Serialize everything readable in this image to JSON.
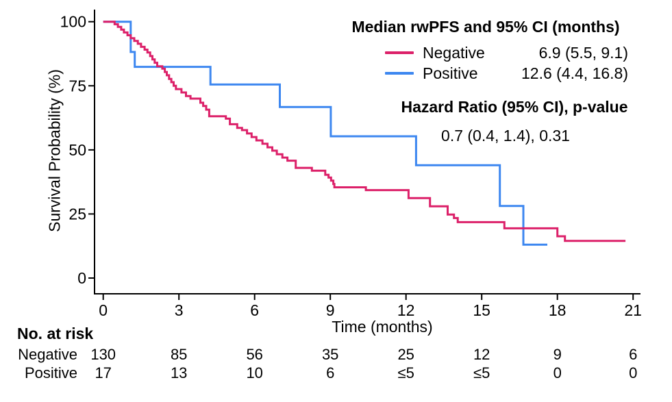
{
  "colors": {
    "axis": "#000000",
    "text": "#000000",
    "negative": "#dc2069",
    "positive": "#3d87f0"
  },
  "chart_data": {
    "type": "line",
    "subtype": "kaplan-meier-step",
    "xlabel": "Time (months)",
    "ylabel": "Survival Probability (%)",
    "xlim": [
      0,
      21
    ],
    "ylim": [
      0,
      100
    ],
    "xticks": [
      "0",
      "3",
      "6",
      "9",
      "12",
      "15",
      "18",
      "21"
    ],
    "yticks": [
      "0",
      "25",
      "50",
      "75",
      "100"
    ],
    "grid": false,
    "series": [
      {
        "name": "Positive",
        "color": "#3d87f0",
        "step_points": [
          [
            0,
            100
          ],
          [
            1.09,
            88.2
          ],
          [
            1.25,
            82.4
          ],
          [
            4.25,
            75.5
          ],
          [
            7.0,
            66.7
          ],
          [
            9.02,
            55.3
          ],
          [
            12.4,
            44.0
          ],
          [
            15.72,
            28.1
          ],
          [
            16.65,
            13.0
          ],
          [
            17.6,
            13.0
          ]
        ]
      },
      {
        "name": "Negative",
        "color": "#dc2069",
        "step_points": [
          [
            0,
            100
          ],
          [
            0.45,
            99.0
          ],
          [
            0.58,
            98.0
          ],
          [
            0.71,
            96.9
          ],
          [
            0.82,
            95.8
          ],
          [
            0.96,
            94.7
          ],
          [
            1.09,
            93.6
          ],
          [
            1.23,
            92.5
          ],
          [
            1.37,
            91.4
          ],
          [
            1.5,
            90.2
          ],
          [
            1.64,
            89.1
          ],
          [
            1.75,
            88.0
          ],
          [
            1.86,
            86.6
          ],
          [
            1.95,
            85.3
          ],
          [
            2.04,
            84.0
          ],
          [
            2.14,
            82.6
          ],
          [
            2.34,
            81.7
          ],
          [
            2.44,
            80.4
          ],
          [
            2.52,
            79.1
          ],
          [
            2.61,
            77.7
          ],
          [
            2.7,
            76.4
          ],
          [
            2.79,
            75.0
          ],
          [
            2.88,
            73.7
          ],
          [
            3.1,
            72.4
          ],
          [
            3.28,
            71.0
          ],
          [
            3.46,
            70.0
          ],
          [
            3.85,
            68.4
          ],
          [
            3.96,
            67.1
          ],
          [
            4.08,
            65.7
          ],
          [
            4.2,
            63.1
          ],
          [
            4.86,
            62.2
          ],
          [
            5.02,
            60.0
          ],
          [
            5.31,
            58.6
          ],
          [
            5.5,
            57.7
          ],
          [
            5.7,
            56.4
          ],
          [
            5.88,
            55.0
          ],
          [
            6.07,
            53.7
          ],
          [
            6.31,
            52.4
          ],
          [
            6.51,
            51.0
          ],
          [
            6.7,
            49.7
          ],
          [
            6.88,
            48.3
          ],
          [
            7.1,
            47.0
          ],
          [
            7.3,
            45.8
          ],
          [
            7.63,
            43.0
          ],
          [
            8.27,
            41.9
          ],
          [
            8.8,
            40.3
          ],
          [
            8.93,
            39.2
          ],
          [
            9.03,
            38.0
          ],
          [
            9.12,
            36.7
          ],
          [
            9.16,
            35.4
          ],
          [
            10.41,
            34.3
          ],
          [
            12.1,
            31.2
          ],
          [
            12.95,
            28.0
          ],
          [
            13.65,
            24.8
          ],
          [
            13.9,
            23.4
          ],
          [
            14.05,
            21.8
          ],
          [
            15.9,
            19.4
          ],
          [
            18.0,
            16.3
          ],
          [
            18.3,
            14.5
          ],
          [
            20.7,
            14.5
          ]
        ]
      }
    ],
    "legend": {
      "title": "Median rwPFS and 95% CI (months)",
      "entries": [
        {
          "label": "Negative",
          "value": "6.9 (5.5, 9.1)",
          "color": "#dc2069"
        },
        {
          "label": "Positive",
          "value": "12.6 (4.4, 16.8)",
          "color": "#3d87f0"
        }
      ]
    },
    "hazard": {
      "title": "Hazard Ratio (95% CI), p-value",
      "value": "0.7 (0.4, 1.4), 0.31"
    },
    "risk_table": {
      "title": "No. at risk",
      "time_points": [
        0,
        3,
        6,
        9,
        12,
        15,
        18,
        21
      ],
      "rows": [
        {
          "label": "Negative",
          "counts": [
            "130",
            "85",
            "56",
            "35",
            "25",
            "12",
            "9",
            "6"
          ]
        },
        {
          "label": "Positive",
          "counts": [
            "17",
            "13",
            "10",
            "6",
            "≤5",
            "≤5",
            "0",
            "0"
          ]
        }
      ]
    }
  }
}
